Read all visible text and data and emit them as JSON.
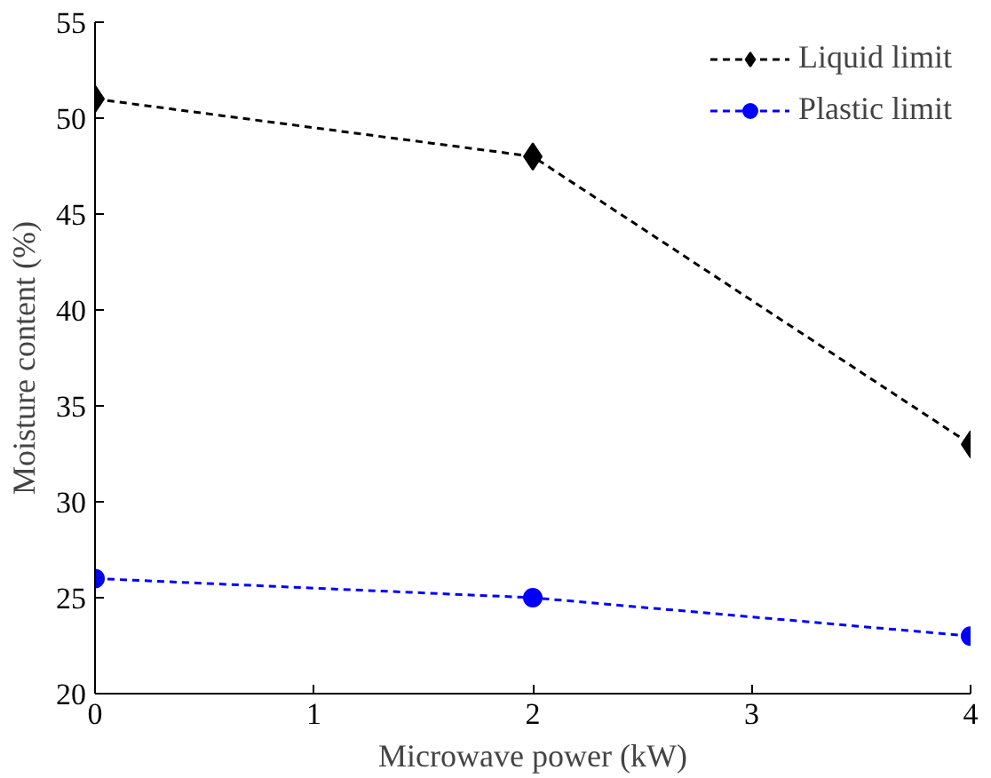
{
  "chart_data": {
    "type": "line",
    "xlabel": "Microwave power (kW)",
    "ylabel": "Moisture content (%)",
    "x": [
      0,
      2,
      4
    ],
    "series": [
      {
        "name": "Liquid limit",
        "color": "#000000",
        "values": [
          51,
          48,
          33
        ],
        "marker": "diamond"
      },
      {
        "name": "Plastic limit",
        "color": "#0000ff",
        "values": [
          26,
          25,
          23
        ],
        "marker": "circle"
      }
    ],
    "xlim": [
      0,
      4
    ],
    "xticks": [
      0,
      1,
      2,
      3,
      4
    ],
    "ylim": [
      20,
      55
    ],
    "yticks": [
      20,
      25,
      30,
      35,
      40,
      45,
      50,
      55
    ],
    "grid": false,
    "legend": "top right",
    "line_style": "dashed"
  }
}
